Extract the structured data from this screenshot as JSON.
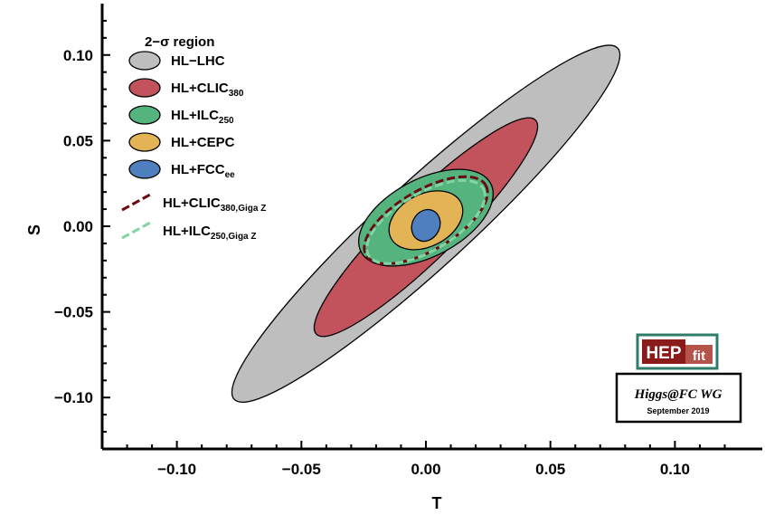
{
  "chart_data": {
    "type": "scatter",
    "title": "",
    "xlabel": "T",
    "ylabel": "S",
    "xlim": [
      -0.13,
      0.13
    ],
    "ylim": [
      -0.13,
      0.13
    ],
    "xticks": [
      -0.1,
      -0.05,
      0.0,
      0.05,
      0.1
    ],
    "yticks": [
      -0.1,
      -0.05,
      0.0,
      0.05,
      0.1
    ],
    "xtick_labels": [
      "−0.10",
      "−0.05",
      "0.00",
      "0.05",
      "0.10"
    ],
    "ytick_labels": [
      "−0.10",
      "−0.05",
      "0.00",
      "0.05",
      "0.10"
    ],
    "legend_title": "2−σ region",
    "legend_position": "top-left",
    "series": [
      {
        "name": "HL−LHC",
        "sub": "",
        "kind": "filled",
        "color": "#bebebe",
        "cx": 0.0,
        "cy": 0.0,
        "tmin": -0.077,
        "tmax": 0.077,
        "smin": -0.101,
        "smax": 0.104,
        "width": 0.0175
      },
      {
        "name": "HL+CLIC",
        "sub": "380",
        "kind": "filled",
        "color": "#c2525c",
        "cx": 0.0,
        "cy": 0.0,
        "tmin": -0.044,
        "tmax": 0.044,
        "smin": -0.063,
        "smax": 0.062,
        "width": 0.0125
      },
      {
        "name": "HL+ILC",
        "sub": "250",
        "kind": "filled",
        "color": "#55b47e",
        "cx": 0.0,
        "cy": 0.002,
        "tmin": -0.026,
        "tmax": 0.026,
        "smin": -0.017,
        "smax": 0.023,
        "width": 0.0155
      },
      {
        "name": "HL+CEPC",
        "sub": "",
        "kind": "filled",
        "color": "#e3b455",
        "cx": 0.0,
        "cy": 0.002,
        "tmin": -0.014,
        "tmax": 0.014,
        "smin": -0.009,
        "smax": 0.012,
        "width": 0.0105
      },
      {
        "name": "HL+FCC",
        "sub": "ee",
        "kind": "filled",
        "color": "#4f7fbe",
        "cx": 0.0,
        "cy": 0.0,
        "tmin": -0.003,
        "tmax": 0.003,
        "smin": -0.008,
        "smax": 0.009,
        "width": 0.0055
      },
      {
        "name": "HL+CLIC",
        "sub": "380,Giga Z",
        "kind": "dashed",
        "color": "#6b0a12",
        "cx": 0.0,
        "cy": 0.002,
        "tmin": -0.024,
        "tmax": 0.024,
        "smin": -0.019,
        "smax": 0.022,
        "width": 0.012
      },
      {
        "name": "HL+ILC",
        "sub": "250,Giga Z",
        "kind": "dashed",
        "color": "#7fd6a4",
        "cx": 0.0,
        "cy": 0.002,
        "tmin": -0.023,
        "tmax": 0.023,
        "smin": -0.019,
        "smax": 0.02,
        "width": 0.0115
      }
    ]
  },
  "logo": {
    "hep": "HEP",
    "fit": "fit",
    "hep_color": "#8b1a1a",
    "fit_color": "#b5544a",
    "frame_color": "#2e7d6b"
  },
  "wg_box": {
    "title": "Higgs@FC WG",
    "date": "September 2019"
  }
}
